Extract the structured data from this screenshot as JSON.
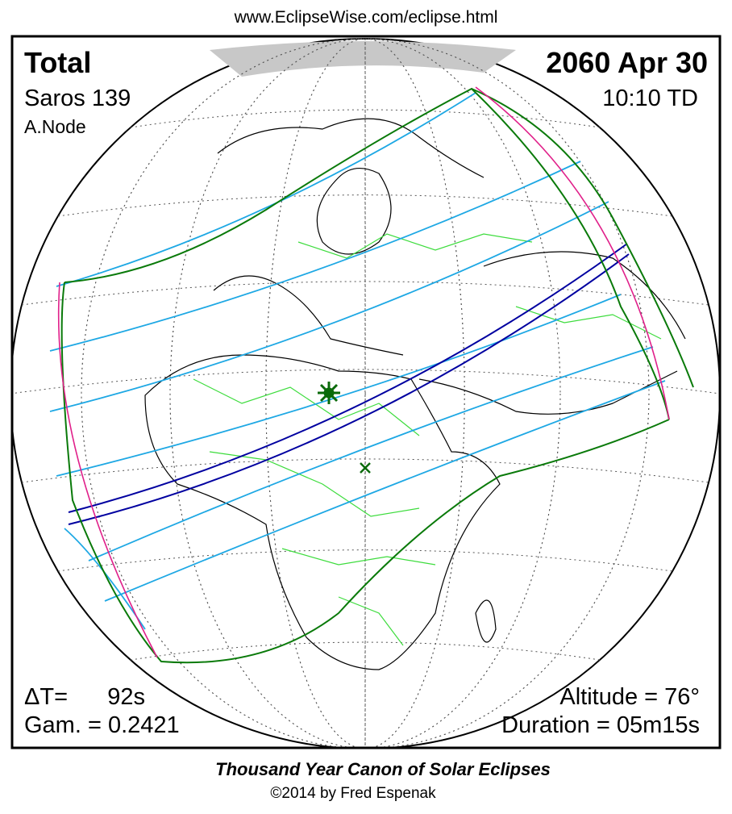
{
  "header": {
    "url": "www.EclipseWise.com/eclipse.html"
  },
  "eclipse": {
    "type": "Total",
    "saros": "Saros 139",
    "node": "A.Node",
    "date": "2060 Apr 30",
    "time": "10:10 TD"
  },
  "parameters": {
    "delta_t_label": "ΔT=",
    "delta_t_value": "92s",
    "gamma": "Gam. = 0.2421",
    "altitude": "Altitude = 76°",
    "duration": "Duration = 05m15s"
  },
  "footer": {
    "title": "Thousand Year Canon of Solar Eclipses",
    "copyright": "©2014 by Fred Espenak"
  }
}
